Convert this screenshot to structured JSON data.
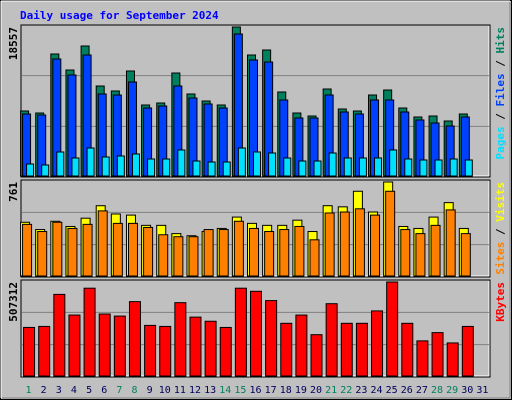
{
  "chart_data": [
    {
      "type": "bar",
      "title": "Daily usage for September 2024",
      "categories": [
        "1",
        "2",
        "3",
        "4",
        "5",
        "6",
        "7",
        "8",
        "9",
        "10",
        "11",
        "12",
        "13",
        "14",
        "15",
        "16",
        "17",
        "18",
        "19",
        "20",
        "21",
        "22",
        "23",
        "24",
        "25",
        "26",
        "27",
        "28",
        "29",
        "30",
        "31"
      ],
      "category_colors": [
        "#00805c",
        "#00005c",
        "#00005c",
        "#00005c",
        "#00005c",
        "#00005c",
        "#00805c",
        "#00805c",
        "#00005c",
        "#00005c",
        "#00005c",
        "#00005c",
        "#00005c",
        "#00805c",
        "#00805c",
        "#00005c",
        "#00005c",
        "#00005c",
        "#00005c",
        "#00005c",
        "#00805c",
        "#00805c",
        "#00005c",
        "#00005c",
        "#00005c",
        "#00005c",
        "#00005c",
        "#00805c",
        "#00805c",
        "#00005c",
        "#00005c"
      ],
      "ylim": [
        0,
        18557
      ],
      "yticks": [
        18557
      ],
      "legend_separator": " / ",
      "series": [
        {
          "name": "Pages",
          "color": "#00e0ff",
          "values": [
            1494,
            1370,
            2989,
            2242,
            3487,
            2366,
            2491,
            2740,
            2117,
            2117,
            3238,
            1868,
            1743,
            1743,
            3487,
            2989,
            2864,
            2242,
            1868,
            1868,
            2864,
            2242,
            2242,
            2242,
            3238,
            2117,
            1993,
            1993,
            2117,
            1993,
            null
          ]
        },
        {
          "name": "Files",
          "color": "#0040ff",
          "values": [
            7722,
            7597,
            14572,
            12579,
            15070,
            10213,
            10088,
            11707,
            8469,
            8718,
            11209,
            9714,
            8967,
            8469,
            17685,
            14447,
            14198,
            9465,
            7223,
            7223,
            10088,
            7971,
            7722,
            9465,
            9465,
            7971,
            6974,
            6601,
            6227,
            7348,
            null
          ]
        },
        {
          "name": "Hits",
          "color": "#00805c",
          "values": [
            8095,
            7846,
            15194,
            13201,
            16191,
            11209,
            10586,
            13077,
            8843,
            9092,
            12828,
            10213,
            9341,
            8843,
            18557,
            15070,
            15692,
            10462,
            7846,
            7472,
            10835,
            8344,
            8095,
            10088,
            10711,
            8469,
            7348,
            7472,
            6850,
            7722,
            null
          ]
        }
      ]
    },
    {
      "type": "bar",
      "ylim": [
        0,
        761
      ],
      "yticks": [
        761
      ],
      "legend_separator": " / ",
      "series": [
        {
          "name": "Sites",
          "color": "#ff8000",
          "values": [
            418,
            360,
            435,
            385,
            418,
            527,
            426,
            426,
            393,
            334,
            318,
            318,
            376,
            376,
            443,
            385,
            360,
            376,
            401,
            293,
            510,
            518,
            544,
            493,
            686,
            376,
            343,
            410,
            535,
            343,
            null
          ]
        },
        {
          "name": "Visits",
          "color": "#ffff00",
          "values": [
            435,
            376,
            443,
            401,
            468,
            569,
            502,
            493,
            410,
            410,
            343,
            326,
            360,
            385,
            477,
            426,
            410,
            410,
            452,
            360,
            569,
            560,
            686,
            518,
            761,
            401,
            385,
            477,
            594,
            385,
            null
          ]
        }
      ]
    },
    {
      "type": "bar",
      "ylim": [
        0,
        507312
      ],
      "yticks": [
        507312
      ],
      "series": [
        {
          "name": "KBytes",
          "color": "#ff0000",
          "values": [
            262025,
            267600,
            440425,
            328925,
            473875,
            334500,
            323350,
            401400,
            273175,
            267600,
            395825,
            317775,
            295475,
            262025,
            473875,
            457150,
            406975,
            284325,
            328925,
            223000,
            390250,
            284325,
            284325,
            351225,
            507312,
            284325,
            189550,
            234150,
            178400,
            267600,
            null
          ]
        }
      ]
    }
  ]
}
